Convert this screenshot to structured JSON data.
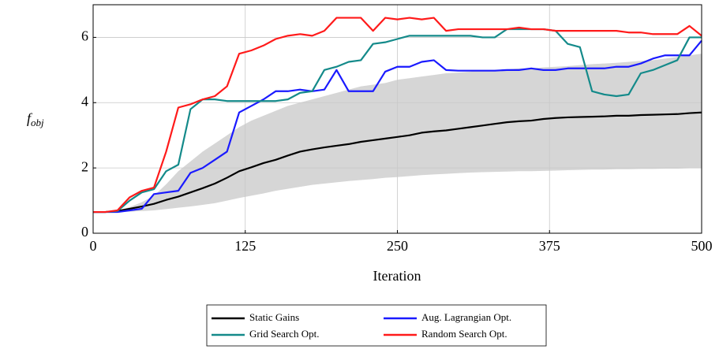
{
  "chart_data": {
    "type": "line",
    "x_label": "Iteration",
    "y_label": "f_obj",
    "x": [
      0,
      10,
      20,
      30,
      40,
      50,
      60,
      70,
      80,
      90,
      100,
      110,
      120,
      130,
      140,
      150,
      160,
      170,
      180,
      190,
      200,
      210,
      220,
      230,
      240,
      250,
      260,
      270,
      280,
      290,
      300,
      310,
      320,
      330,
      340,
      350,
      360,
      370,
      380,
      390,
      400,
      410,
      420,
      430,
      440,
      450,
      460,
      470,
      480,
      490,
      500
    ],
    "band": {
      "color": "#d6d6d6",
      "lower": [
        0.65,
        0.65,
        0.65,
        0.66,
        0.68,
        0.7,
        0.74,
        0.78,
        0.82,
        0.87,
        0.92,
        1.0,
        1.08,
        1.15,
        1.22,
        1.3,
        1.36,
        1.42,
        1.48,
        1.52,
        1.56,
        1.6,
        1.63,
        1.66,
        1.7,
        1.72,
        1.75,
        1.78,
        1.8,
        1.82,
        1.84,
        1.86,
        1.87,
        1.88,
        1.89,
        1.9,
        1.9,
        1.91,
        1.92,
        1.93,
        1.94,
        1.95,
        1.95,
        1.96,
        1.96,
        1.97,
        1.97,
        1.98,
        1.98,
        1.99,
        2.0
      ],
      "upper": [
        0.65,
        0.66,
        0.7,
        0.8,
        0.95,
        1.15,
        1.5,
        1.9,
        2.2,
        2.5,
        2.75,
        3.0,
        3.25,
        3.45,
        3.6,
        3.75,
        3.9,
        4.0,
        4.1,
        4.2,
        4.3,
        4.4,
        4.5,
        4.55,
        4.6,
        4.7,
        4.75,
        4.8,
        4.85,
        4.9,
        4.92,
        4.95,
        5.0,
        5.0,
        5.02,
        5.05,
        5.05,
        5.08,
        5.1,
        5.12,
        5.15,
        5.18,
        5.2,
        5.22,
        5.25,
        5.28,
        5.3,
        5.35,
        5.4,
        5.45,
        5.5
      ]
    },
    "series": [
      {
        "name": "Static Gains",
        "color": "#000000",
        "values": [
          0.65,
          0.65,
          0.68,
          0.75,
          0.82,
          0.9,
          1.02,
          1.12,
          1.25,
          1.38,
          1.52,
          1.7,
          1.9,
          2.02,
          2.15,
          2.25,
          2.38,
          2.5,
          2.57,
          2.63,
          2.68,
          2.73,
          2.8,
          2.85,
          2.9,
          2.95,
          3.0,
          3.08,
          3.12,
          3.15,
          3.2,
          3.25,
          3.3,
          3.35,
          3.4,
          3.43,
          3.45,
          3.5,
          3.53,
          3.55,
          3.56,
          3.57,
          3.58,
          3.6,
          3.6,
          3.62,
          3.63,
          3.64,
          3.65,
          3.68,
          3.7
        ]
      },
      {
        "name": "Aug. Lagrangian Opt.",
        "color": "#1a1aff",
        "values": [
          0.65,
          0.65,
          0.65,
          0.7,
          0.75,
          1.2,
          1.25,
          1.3,
          1.85,
          2.0,
          2.25,
          2.5,
          3.7,
          3.9,
          4.1,
          4.35,
          4.35,
          4.4,
          4.35,
          4.4,
          5.0,
          4.35,
          4.35,
          4.35,
          4.95,
          5.1,
          5.1,
          5.25,
          5.3,
          5.0,
          4.98,
          4.98,
          4.98,
          4.98,
          5.0,
          5.0,
          5.05,
          5.0,
          5.0,
          5.05,
          5.05,
          5.05,
          5.05,
          5.1,
          5.1,
          5.2,
          5.35,
          5.45,
          5.45,
          5.45,
          5.9
        ]
      },
      {
        "name": "Grid Search Opt.",
        "color": "#148a8a",
        "values": [
          0.65,
          0.65,
          0.68,
          1.0,
          1.25,
          1.35,
          1.9,
          2.1,
          3.8,
          4.1,
          4.1,
          4.05,
          4.05,
          4.05,
          4.05,
          4.05,
          4.1,
          4.3,
          4.35,
          5.0,
          5.1,
          5.25,
          5.3,
          5.8,
          5.85,
          5.95,
          6.05,
          6.05,
          6.05,
          6.05,
          6.05,
          6.05,
          6.0,
          6.0,
          6.25,
          6.25,
          6.25,
          6.25,
          6.2,
          5.8,
          5.7,
          4.35,
          4.25,
          4.2,
          4.25,
          4.9,
          5.0,
          5.15,
          5.3,
          6.0,
          6.0
        ]
      },
      {
        "name": "Random Search Opt.",
        "color": "#ff1a1a",
        "values": [
          0.65,
          0.65,
          0.7,
          1.1,
          1.3,
          1.4,
          2.5,
          3.85,
          3.95,
          4.1,
          4.2,
          4.5,
          5.5,
          5.6,
          5.75,
          5.95,
          6.05,
          6.1,
          6.05,
          6.2,
          6.6,
          6.6,
          6.6,
          6.2,
          6.6,
          6.55,
          6.6,
          6.55,
          6.6,
          6.2,
          6.25,
          6.25,
          6.25,
          6.25,
          6.25,
          6.3,
          6.25,
          6.25,
          6.2,
          6.2,
          6.2,
          6.2,
          6.2,
          6.2,
          6.15,
          6.15,
          6.1,
          6.1,
          6.1,
          6.35,
          6.05
        ]
      }
    ],
    "xlim": [
      0,
      500
    ],
    "ylim": [
      0,
      7
    ],
    "xticks": [
      0,
      125,
      250,
      375,
      500
    ],
    "yticks": [
      0,
      2,
      4,
      6
    ],
    "grid": true
  }
}
